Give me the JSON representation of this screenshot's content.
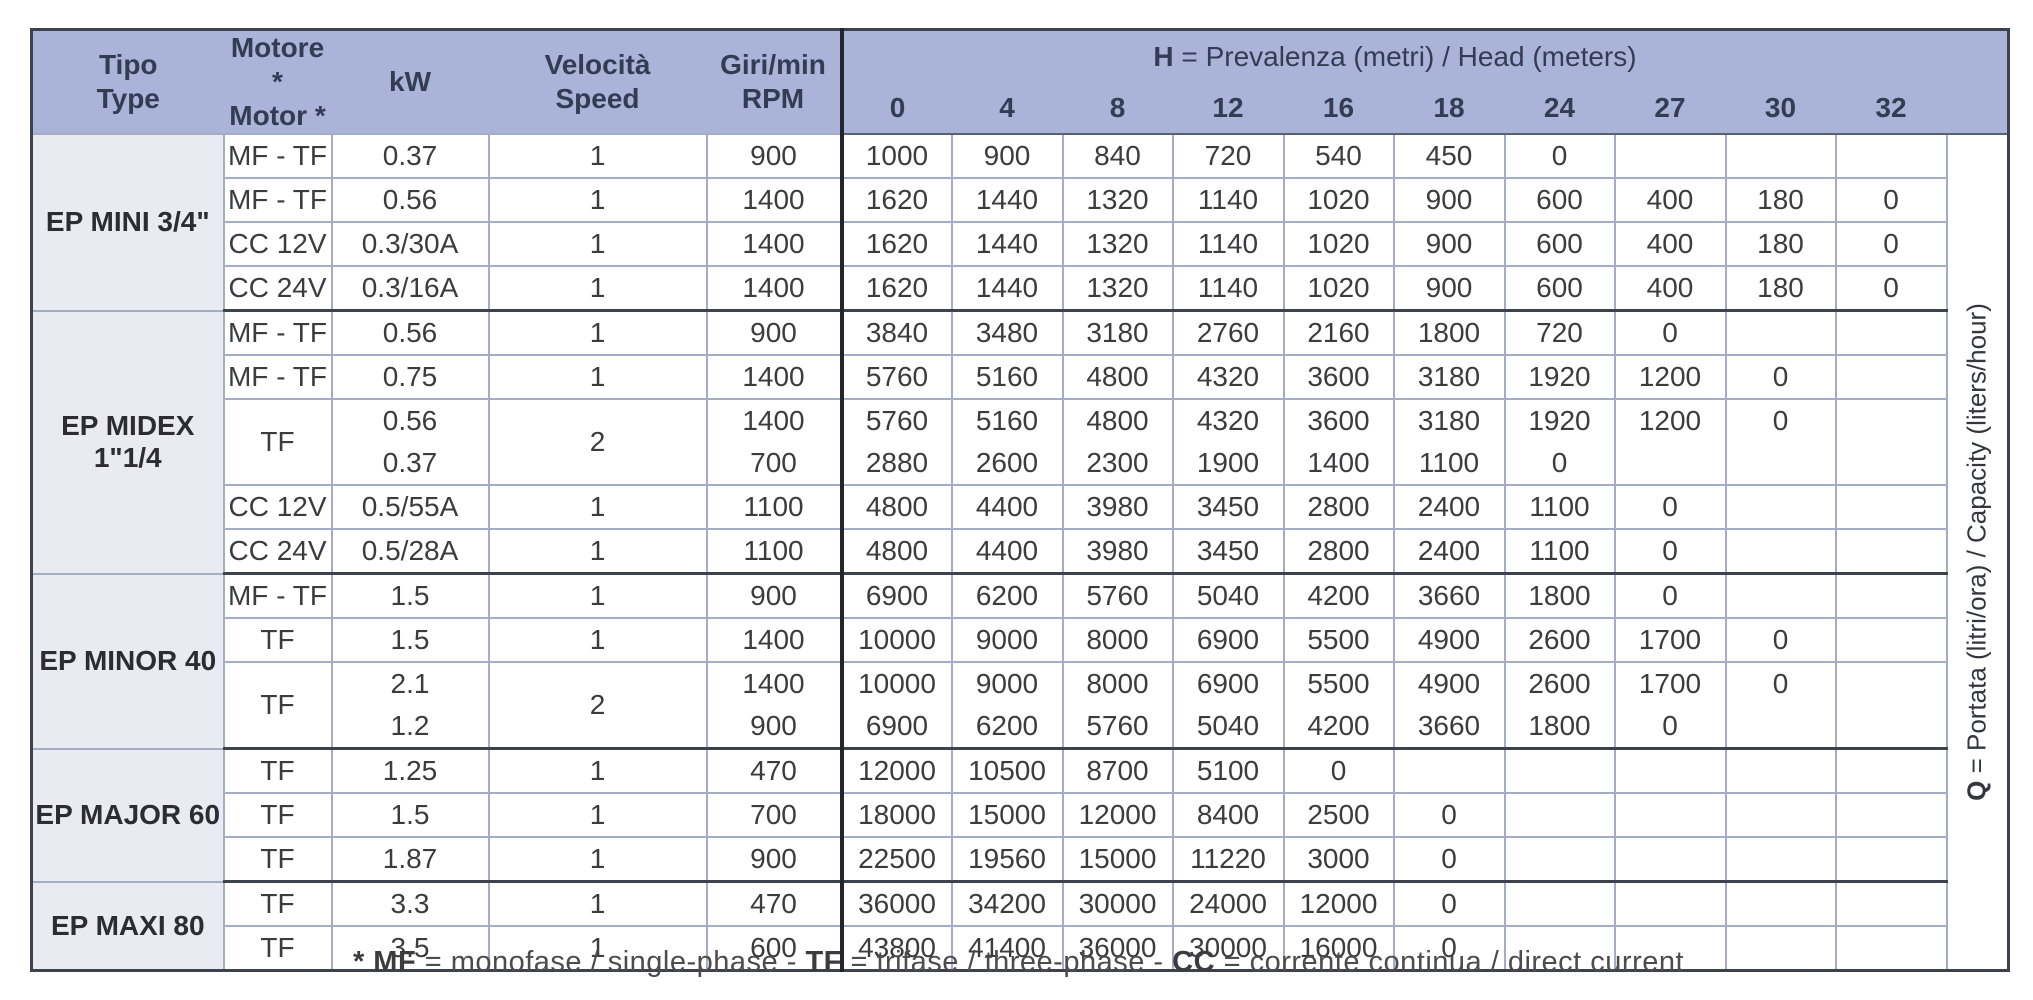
{
  "colors": {
    "header_bg": "#a9b4d8",
    "header_text": "#333c52",
    "tipo_bg": "#e9eaf2",
    "grid": "#a3aec6",
    "dark": "#3d424c",
    "divider": "#22252b",
    "data_text": "#3c3c3e"
  },
  "table": {
    "headers": {
      "tipo": [
        "Tipo",
        "Type"
      ],
      "motore": [
        "Motore *",
        "Motor *"
      ],
      "kw": "kW",
      "velocita": [
        "Velocità",
        "Speed"
      ],
      "giri": [
        "Giri/min",
        "RPM"
      ],
      "h_title_prefix": "H",
      "h_title_rest": " = Prevalenza (metri) / Head (meters)",
      "h_columns": [
        "0",
        "4",
        "8",
        "12",
        "16",
        "18",
        "24",
        "27",
        "30",
        "32"
      ]
    },
    "q_label_prefix": "Q",
    "q_label_rest": " = Portata (litri/ora) / Capacity (liters/hour)",
    "groups": [
      {
        "type": "EP MINI 3/4\"",
        "rows": [
          {
            "motor": "MF - TF",
            "kw": "0.37",
            "speed": "1",
            "rpm": "900",
            "values": [
              "1000",
              "900",
              "840",
              "720",
              "540",
              "450",
              "0",
              "",
              "",
              ""
            ]
          },
          {
            "motor": "MF - TF",
            "kw": "0.56",
            "speed": "1",
            "rpm": "1400",
            "values": [
              "1620",
              "1440",
              "1320",
              "1140",
              "1020",
              "900",
              "600",
              "400",
              "180",
              "0"
            ]
          },
          {
            "motor": "CC 12V",
            "kw": "0.3/30A",
            "speed": "1",
            "rpm": "1400",
            "values": [
              "1620",
              "1440",
              "1320",
              "1140",
              "1020",
              "900",
              "600",
              "400",
              "180",
              "0"
            ]
          },
          {
            "motor": "CC 24V",
            "kw": "0.3/16A",
            "speed": "1",
            "rpm": "1400",
            "values": [
              "1620",
              "1440",
              "1320",
              "1140",
              "1020",
              "900",
              "600",
              "400",
              "180",
              "0"
            ]
          }
        ]
      },
      {
        "type": "EP MIDEX 1\"1/4",
        "rows": [
          {
            "motor": "MF - TF",
            "kw": "0.56",
            "speed": "1",
            "rpm": "900",
            "values": [
              "3840",
              "3480",
              "3180",
              "2760",
              "2160",
              "1800",
              "720",
              "0",
              "",
              ""
            ]
          },
          {
            "motor": "MF - TF",
            "kw": "0.75",
            "speed": "1",
            "rpm": "1400",
            "values": [
              "5760",
              "5160",
              "4800",
              "4320",
              "3600",
              "3180",
              "1920",
              "1200",
              "0",
              ""
            ]
          },
          {
            "motor": "TF",
            "kw": [
              "0.56",
              "0.37"
            ],
            "speed": "2",
            "rpm": [
              "1400",
              "700"
            ],
            "values": [
              [
                "5760",
                "2880"
              ],
              [
                "5160",
                "2600"
              ],
              [
                "4800",
                "2300"
              ],
              [
                "4320",
                "1900"
              ],
              [
                "3600",
                "1400"
              ],
              [
                "3180",
                "1100"
              ],
              [
                "1920",
                "0"
              ],
              [
                "1200",
                ""
              ],
              [
                "0",
                ""
              ],
              [
                "",
                ""
              ]
            ]
          },
          {
            "motor": "CC 12V",
            "kw": "0.5/55A",
            "speed": "1",
            "rpm": "1100",
            "values": [
              "4800",
              "4400",
              "3980",
              "3450",
              "2800",
              "2400",
              "1100",
              "0",
              "",
              ""
            ]
          },
          {
            "motor": "CC 24V",
            "kw": "0.5/28A",
            "speed": "1",
            "rpm": "1100",
            "values": [
              "4800",
              "4400",
              "3980",
              "3450",
              "2800",
              "2400",
              "1100",
              "0",
              "",
              ""
            ]
          }
        ]
      },
      {
        "type": "EP MINOR 40",
        "rows": [
          {
            "motor": "MF - TF",
            "kw": "1.5",
            "speed": "1",
            "rpm": "900",
            "values": [
              "6900",
              "6200",
              "5760",
              "5040",
              "4200",
              "3660",
              "1800",
              "0",
              "",
              ""
            ]
          },
          {
            "motor": "TF",
            "kw": "1.5",
            "speed": "1",
            "rpm": "1400",
            "values": [
              "10000",
              "9000",
              "8000",
              "6900",
              "5500",
              "4900",
              "2600",
              "1700",
              "0",
              ""
            ]
          },
          {
            "motor": "TF",
            "kw": [
              "2.1",
              "1.2"
            ],
            "speed": "2",
            "rpm": [
              "1400",
              "900"
            ],
            "values": [
              [
                "10000",
                "6900"
              ],
              [
                "9000",
                "6200"
              ],
              [
                "8000",
                "5760"
              ],
              [
                "6900",
                "5040"
              ],
              [
                "5500",
                "4200"
              ],
              [
                "4900",
                "3660"
              ],
              [
                "2600",
                "1800"
              ],
              [
                "1700",
                "0"
              ],
              [
                "0",
                ""
              ],
              [
                "",
                ""
              ]
            ]
          }
        ]
      },
      {
        "type": "EP MAJOR 60",
        "rows": [
          {
            "motor": "TF",
            "kw": "1.25",
            "speed": "1",
            "rpm": "470",
            "values": [
              "12000",
              "10500",
              "8700",
              "5100",
              "0",
              "",
              "",
              "",
              "",
              ""
            ]
          },
          {
            "motor": "TF",
            "kw": "1.5",
            "speed": "1",
            "rpm": "700",
            "values": [
              "18000",
              "15000",
              "12000",
              "8400",
              "2500",
              "0",
              "",
              "",
              "",
              ""
            ]
          },
          {
            "motor": "TF",
            "kw": "1.87",
            "speed": "1",
            "rpm": "900",
            "values": [
              "22500",
              "19560",
              "15000",
              "11220",
              "3000",
              "0",
              "",
              "",
              "",
              ""
            ]
          }
        ]
      },
      {
        "type": "EP MAXI 80",
        "rows": [
          {
            "motor": "TF",
            "kw": "3.3",
            "speed": "1",
            "rpm": "470",
            "values": [
              "36000",
              "34200",
              "30000",
              "24000",
              "12000",
              "0",
              "",
              "",
              "",
              ""
            ]
          },
          {
            "motor": "TF",
            "kw": "3.5",
            "speed": "1",
            "rpm": "600",
            "values": [
              "43800",
              "41400",
              "36000",
              "30000",
              "16000",
              "0",
              "",
              "",
              "",
              ""
            ]
          }
        ]
      }
    ]
  },
  "footnote": {
    "segments": [
      {
        "text": "* MF",
        "bold": true
      },
      {
        "text": " = monofase / single-phase - ",
        "bold": false
      },
      {
        "text": "TF",
        "bold": true
      },
      {
        "text": " = trifase / three-phase - ",
        "bold": false
      },
      {
        "text": "CC",
        "bold": true
      },
      {
        "text": " = corrente continua / direct current",
        "bold": false
      }
    ]
  }
}
